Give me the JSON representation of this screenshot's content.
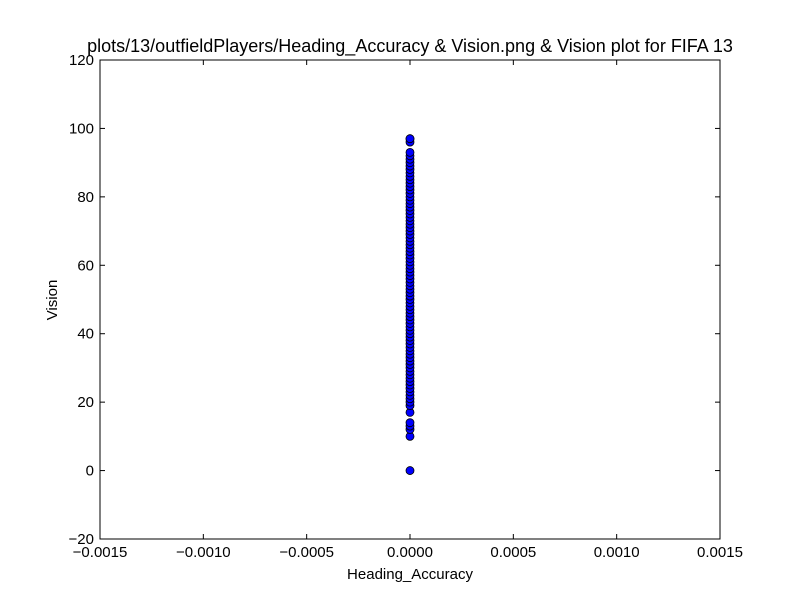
{
  "chart_data": {
    "type": "scatter",
    "title": "plots/13/outfieldPlayers/Heading_Accuracy & Vision.png & Vision plot for FIFA 13",
    "xlabel": "Heading_Accuracy",
    "ylabel": "Vision",
    "xlim": [
      -0.0015,
      0.0015
    ],
    "ylim": [
      -20,
      120
    ],
    "x_ticks": [
      -0.0015,
      -0.001,
      -0.0005,
      0.0,
      0.0005,
      0.001,
      0.0015
    ],
    "x_tick_labels": [
      "−0.0015",
      "−0.0010",
      "−0.0005",
      "0.0000",
      "0.0005",
      "0.0010",
      "0.0015"
    ],
    "y_ticks": [
      -20,
      0,
      20,
      40,
      60,
      80,
      100,
      120
    ],
    "y_tick_labels": [
      "−20",
      "0",
      "20",
      "40",
      "60",
      "80",
      "100",
      "120"
    ],
    "grid": false,
    "marker_color": "#0000ff",
    "marker_edge_color": "#000000",
    "series": [
      {
        "x": [
          0,
          0,
          0,
          0,
          0,
          0,
          0,
          0,
          0,
          0,
          0,
          0,
          0,
          0,
          0,
          0,
          0,
          0,
          0,
          0,
          0,
          0,
          0,
          0,
          0,
          0,
          0,
          0,
          0,
          0,
          0,
          0,
          0,
          0,
          0,
          0,
          0,
          0,
          0,
          0,
          0,
          0,
          0,
          0,
          0,
          0,
          0,
          0,
          0,
          0,
          0,
          0,
          0,
          0,
          0,
          0,
          0,
          0,
          0,
          0,
          0,
          0,
          0,
          0,
          0,
          0,
          0,
          0,
          0,
          0,
          0,
          0,
          0,
          0,
          0,
          0,
          0,
          0,
          0,
          0,
          0,
          0,
          0,
          0
        ],
        "y": [
          0,
          10,
          12,
          13,
          14,
          17,
          19,
          20,
          21,
          22,
          23,
          24,
          25,
          26,
          27,
          28,
          29,
          30,
          31,
          32,
          33,
          34,
          35,
          36,
          37,
          38,
          39,
          40,
          41,
          42,
          43,
          44,
          45,
          46,
          47,
          48,
          49,
          50,
          51,
          52,
          53,
          54,
          55,
          56,
          57,
          58,
          59,
          60,
          61,
          62,
          63,
          64,
          65,
          66,
          67,
          68,
          69,
          70,
          71,
          72,
          73,
          74,
          75,
          76,
          77,
          78,
          79,
          80,
          81,
          82,
          83,
          84,
          85,
          86,
          87,
          88,
          89,
          90,
          91,
          92,
          93,
          96,
          97,
          97
        ]
      }
    ]
  }
}
